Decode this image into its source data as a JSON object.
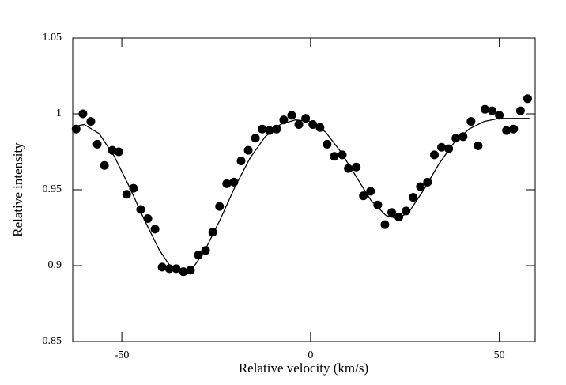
{
  "chart_data": {
    "type": "scatter",
    "xlabel": "Relative velocity (km/s)",
    "ylabel": "Relative intensity",
    "xlim": [
      -63,
      59.5
    ],
    "ylim": [
      0.85,
      1.05
    ],
    "xticks": [
      -50,
      0,
      50
    ],
    "yticks": [
      0.85,
      0.9,
      0.95,
      1,
      1.05
    ],
    "series": [
      {
        "style": "marker",
        "color": "#000000",
        "x": [
          -62.1,
          -60.3,
          -58.2,
          -56.5,
          -54.6,
          -52.5,
          -50.8,
          -48.7,
          -46.9,
          -45.0,
          -43.1,
          -41.2,
          -39.3,
          -37.4,
          -35.6,
          -33.7,
          -31.8,
          -29.7,
          -27.8,
          -25.9,
          -24.1,
          -22.2,
          -20.3,
          -18.4,
          -16.5,
          -14.6,
          -12.8,
          -10.9,
          -9.0,
          -7.1,
          -5.0,
          -3.1,
          -1.3,
          0.6,
          2.5,
          4.4,
          6.3,
          8.4,
          10.0,
          12.1,
          14.0,
          15.9,
          17.8,
          19.7,
          21.5,
          23.4,
          25.3,
          27.2,
          29.1,
          31.0,
          32.8,
          34.7,
          36.6,
          38.5,
          40.4,
          42.5,
          44.4,
          46.2,
          48.1,
          50.0,
          51.9,
          53.8,
          55.6,
          57.5
        ],
        "values": [
          0.99,
          1.0,
          0.995,
          0.98,
          0.966,
          0.976,
          0.975,
          0.947,
          0.951,
          0.937,
          0.931,
          0.924,
          0.899,
          0.898,
          0.898,
          0.896,
          0.897,
          0.907,
          0.91,
          0.922,
          0.939,
          0.954,
          0.955,
          0.969,
          0.976,
          0.984,
          0.99,
          0.989,
          0.99,
          0.996,
          0.999,
          0.993,
          0.997,
          0.993,
          0.991,
          0.98,
          0.972,
          0.973,
          0.964,
          0.965,
          0.946,
          0.949,
          0.94,
          0.927,
          0.935,
          0.932,
          0.936,
          0.945,
          0.952,
          0.955,
          0.973,
          0.978,
          0.977,
          0.984,
          0.985,
          0.995,
          0.979,
          1.003,
          1.002,
          0.999,
          0.989,
          0.99,
          1.002,
          1.01
        ]
      },
      {
        "style": "line",
        "color": "#000000",
        "x": [
          -62,
          -60,
          -56,
          -52,
          -48,
          -44,
          -40,
          -37,
          -34,
          -31,
          -28,
          -24,
          -20,
          -16,
          -12,
          -8,
          -4,
          0,
          4,
          8,
          12,
          16,
          20,
          23,
          26,
          30,
          34,
          38,
          42,
          46,
          50,
          54,
          58
        ],
        "values": [
          0.992,
          0.993,
          0.987,
          0.972,
          0.952,
          0.93,
          0.91,
          0.899,
          0.896,
          0.899,
          0.91,
          0.93,
          0.952,
          0.971,
          0.985,
          0.993,
          0.996,
          0.995,
          0.988,
          0.975,
          0.959,
          0.943,
          0.933,
          0.931,
          0.935,
          0.95,
          0.967,
          0.981,
          0.99,
          0.995,
          0.997,
          0.997,
          0.997
        ]
      }
    ]
  }
}
